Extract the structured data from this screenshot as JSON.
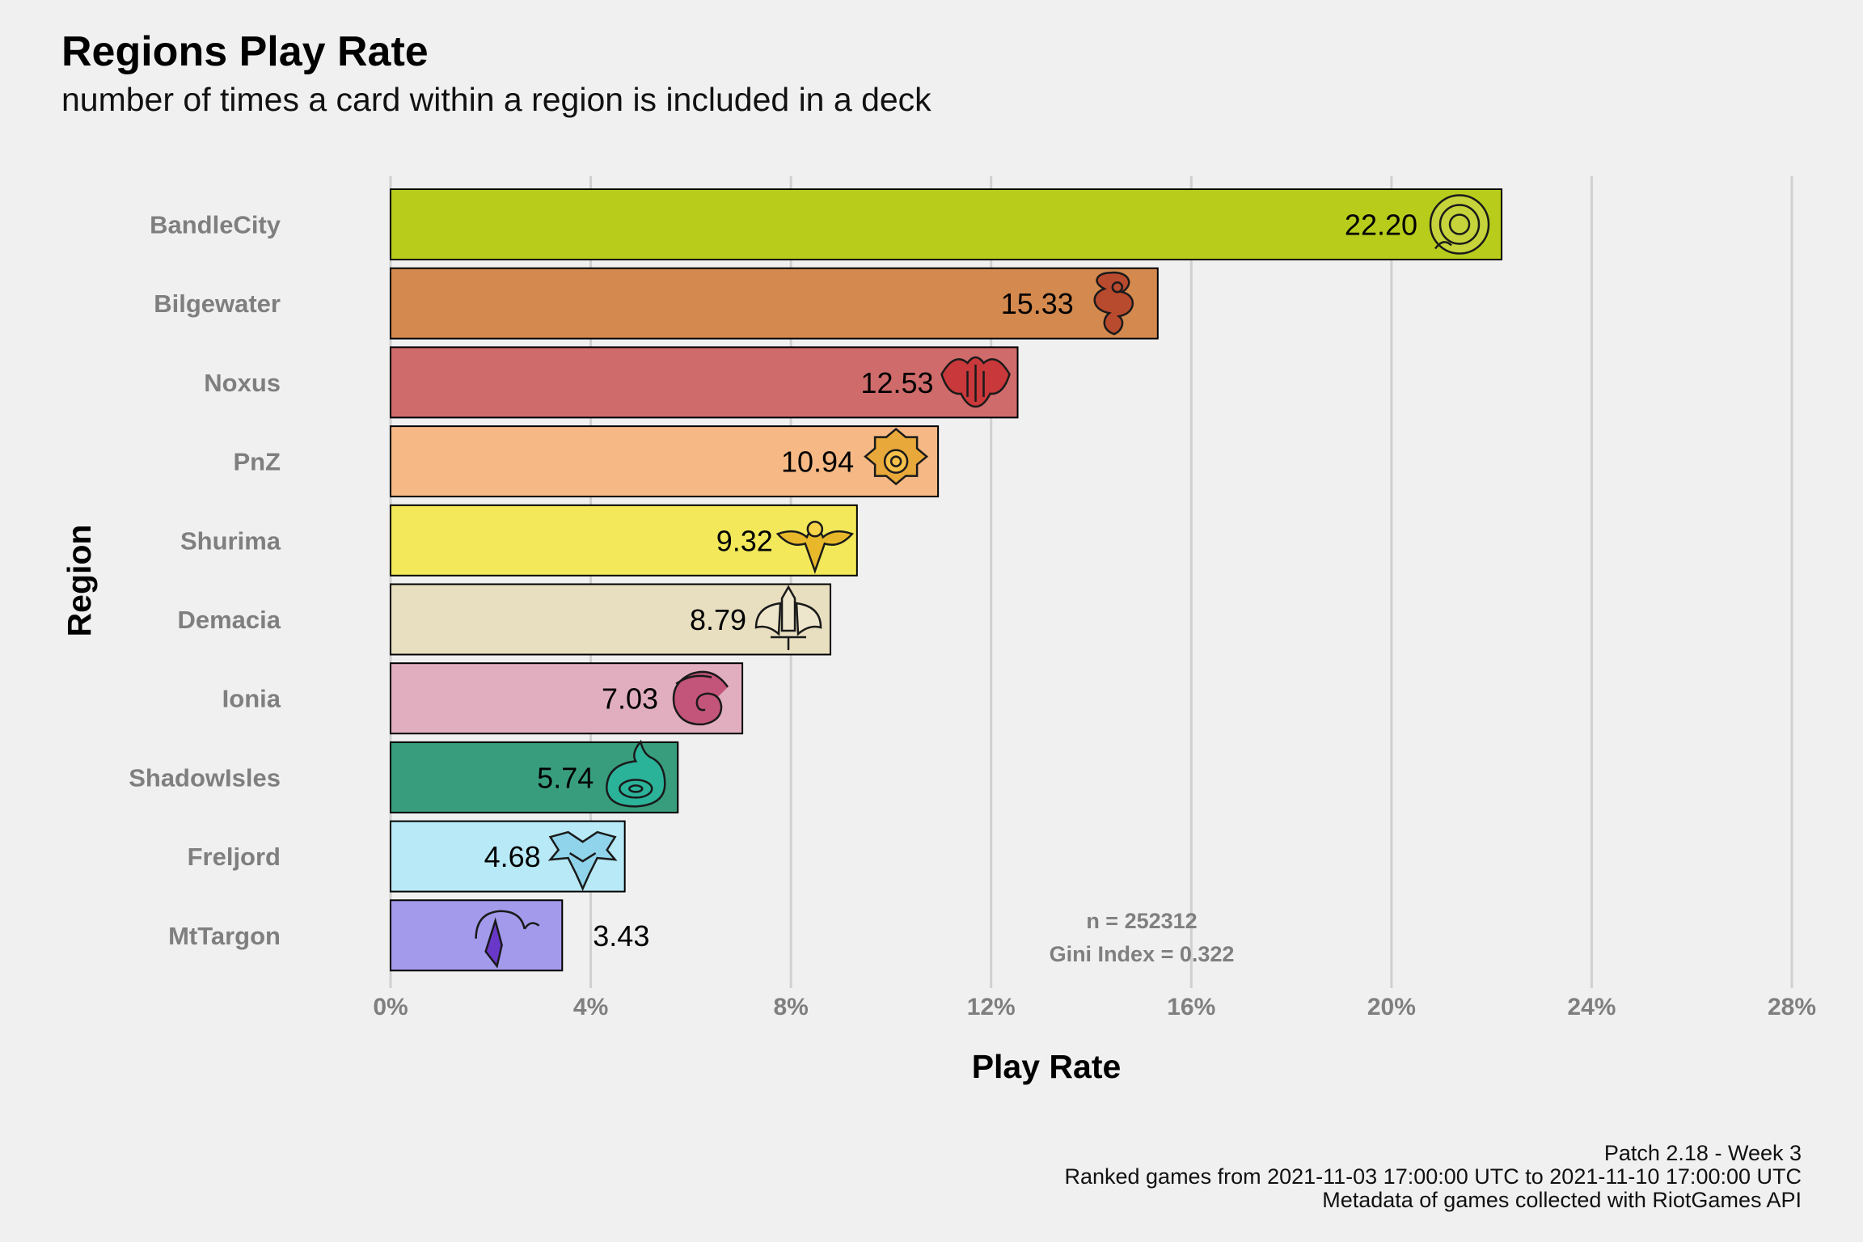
{
  "chart_data": {
    "type": "bar",
    "orientation": "horizontal",
    "title": "Regions Play Rate",
    "subtitle": "number of times a card within a region is included in a deck",
    "xlabel": "Play Rate",
    "ylabel": "Region",
    "xlim": [
      0,
      28
    ],
    "x_ticks": [
      "0%",
      "4%",
      "8%",
      "12%",
      "16%",
      "20%",
      "24%",
      "28%"
    ],
    "grid": "vertical major",
    "categories": [
      "BandleCity",
      "Bilgewater",
      "Noxus",
      "PnZ",
      "Shurima",
      "Demacia",
      "Ionia",
      "ShadowIsles",
      "Freljord",
      "MtTargon"
    ],
    "values": [
      22.2,
      15.33,
      12.53,
      10.94,
      9.32,
      8.79,
      7.03,
      5.74,
      4.68,
      3.43
    ],
    "value_labels": [
      "22.20",
      "15.33",
      "12.53",
      "10.94",
      "9.32",
      "8.79",
      "7.03",
      "5.74",
      "4.68",
      "3.43"
    ],
    "colors": [
      "#b8cc1c",
      "#d4894e",
      "#cf6b6b",
      "#f6b985",
      "#f2e85a",
      "#e8dec0",
      "#e1aec0",
      "#389d7d",
      "#b8e9f6",
      "#a39aeb"
    ],
    "icons": [
      "bandlecity-icon",
      "bilgewater-icon",
      "noxus-icon",
      "pnz-icon",
      "shurima-icon",
      "demacia-icon",
      "ionia-icon",
      "shadowisles-icon",
      "freljord-icon",
      "mttargon-icon"
    ],
    "icon_colors": [
      "#c6d33a",
      "#b84a2e",
      "#c9383a",
      "#e8a83a",
      "#e8b82a",
      "#eee6cc",
      "#c4557a",
      "#2bb39a",
      "#8fd4ea",
      "#6a38c8"
    ],
    "annotations": [
      "n = 252312",
      "Gini Index = 0.322"
    ]
  },
  "caption": {
    "line1": "Patch 2.18 - Week 3",
    "line2": "Ranked games from 2021-11-03 17:00:00 UTC to 2021-11-10 17:00:00 UTC",
    "line3": "Metadata of games collected with RiotGames API"
  }
}
